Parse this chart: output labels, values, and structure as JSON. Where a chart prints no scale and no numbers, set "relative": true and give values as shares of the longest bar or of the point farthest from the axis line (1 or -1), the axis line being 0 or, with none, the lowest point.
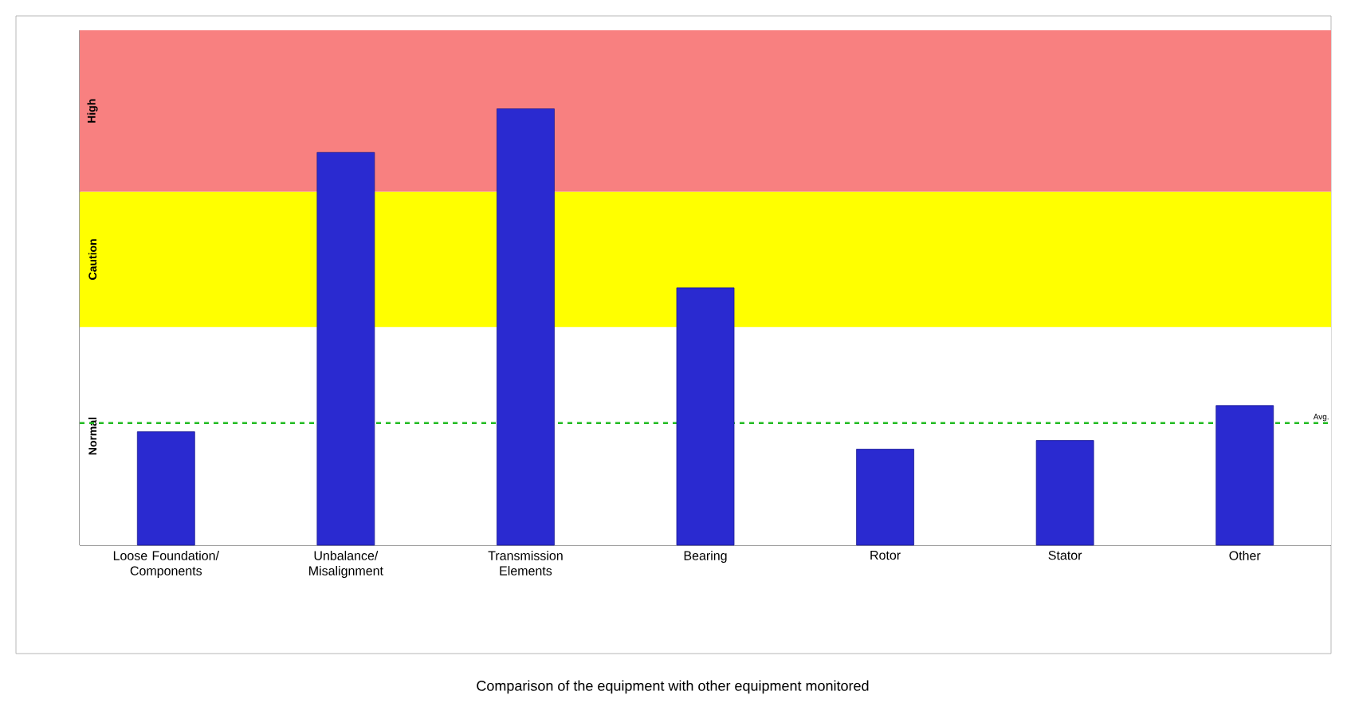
{
  "chart_data": {
    "type": "bar",
    "relative": true,
    "title": "Comparison of the equipment with other equipment monitored",
    "categories": [
      "Loose Foundation/ Components",
      "Unbalance/ Misalignment",
      "Transmission Elements",
      "Bearing",
      "Rotor",
      "Stator",
      "Other"
    ],
    "values": [
      0.26,
      0.9,
      1.0,
      0.59,
      0.22,
      0.24,
      0.32
    ],
    "color": "#2a2ad0",
    "bands": [
      {
        "axis": "y",
        "from": 0,
        "to": 0.5,
        "label": "Normal",
        "color": "#ffffff"
      },
      {
        "axis": "y",
        "from": 0.5,
        "to": 0.81,
        "label": "Caution",
        "color": "#ffff00"
      },
      {
        "axis": "y",
        "from": 0.81,
        "to": 1.18,
        "label": "High",
        "color": "#f88080"
      }
    ],
    "ref_lines": [
      {
        "axis": "y",
        "value": 0.28,
        "label": "Avg.",
        "color": "#22bb22",
        "line_style": "dashed"
      }
    ],
    "legend": false
  }
}
